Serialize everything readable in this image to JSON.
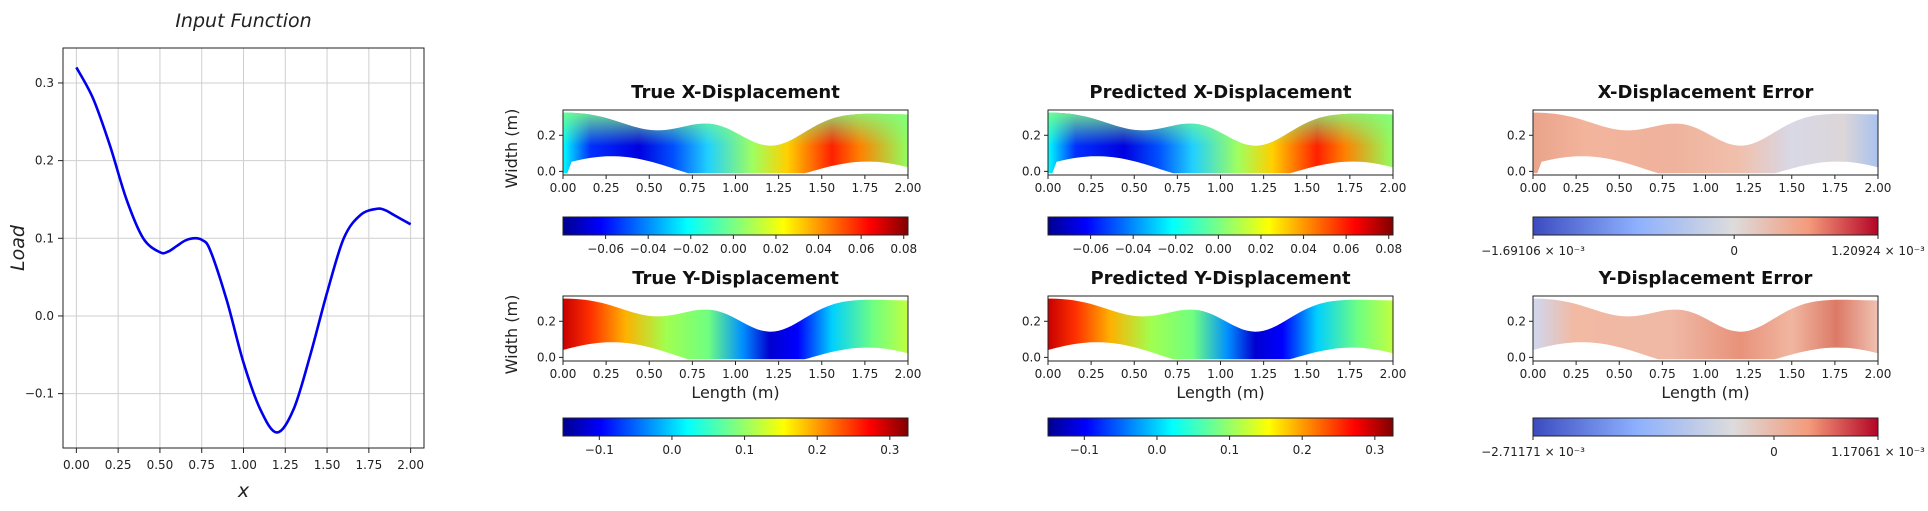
{
  "input_panel": {
    "title": "Input Function",
    "xlabel": "x",
    "ylabel": "Load"
  },
  "panels": {
    "tx": {
      "title": "True X-Displacement"
    },
    "px": {
      "title": "Predicted X-Displacement"
    },
    "ex": {
      "title": "X-Displacement Error"
    },
    "ty": {
      "title": "True Y-Displacement"
    },
    "py": {
      "title": "Predicted Y-Displacement"
    },
    "ey": {
      "title": "Y-Displacement Error"
    }
  },
  "axes_text": {
    "width_label": "Width (m)",
    "length_label": "Length (m)",
    "x_ticks": [
      "0.00",
      "0.25",
      "0.50",
      "0.75",
      "1.00",
      "1.25",
      "1.50",
      "1.75",
      "2.00"
    ],
    "y_ticks": [
      "0.0",
      "0.2"
    ]
  },
  "colorbars": {
    "x_disp_ticks": [
      "−0.06",
      "−0.04",
      "−0.02",
      "0.00",
      "0.02",
      "0.04",
      "0.06",
      "0.08"
    ],
    "y_disp_ticks": [
      "−0.1",
      "0.0",
      "0.1",
      "0.2",
      "0.3"
    ],
    "ex_min": "−1.69106 × 10⁻³",
    "ex_zero": "0",
    "ex_max": "1.20924 × 10⁻³",
    "ey_min": "−2.71171 × 10⁻³",
    "ey_zero": "0",
    "ey_max": "1.17061 × 10⁻³"
  },
  "chart_data": [
    {
      "type": "line",
      "title": "Input Function",
      "xlabel": "x",
      "ylabel": "Load",
      "x": [
        0.0,
        0.1,
        0.2,
        0.3,
        0.4,
        0.5,
        0.55,
        0.6,
        0.65,
        0.7,
        0.75,
        0.8,
        0.9,
        1.0,
        1.1,
        1.2,
        1.3,
        1.4,
        1.5,
        1.6,
        1.7,
        1.8,
        1.85,
        1.9,
        2.0
      ],
      "y": [
        0.32,
        0.28,
        0.22,
        0.15,
        0.1,
        0.082,
        0.083,
        0.09,
        0.097,
        0.1,
        0.098,
        0.085,
        0.02,
        -0.06,
        -0.12,
        -0.15,
        -0.12,
        -0.05,
        0.03,
        0.1,
        0.13,
        0.138,
        0.136,
        0.13,
        0.118
      ],
      "xticks": [
        "0.00",
        "0.25",
        "0.50",
        "0.75",
        "1.00",
        "1.25",
        "1.50",
        "1.75",
        "2.00"
      ],
      "yticks": [
        "−0.1",
        "0.0",
        "0.1",
        "0.2",
        "0.3"
      ],
      "xlim": [
        -0.08,
        2.08
      ],
      "ylim": [
        -0.17,
        0.345
      ],
      "grid": true,
      "color": "#0000ee"
    },
    {
      "type": "heatmap",
      "title": "True X-Displacement",
      "colormap": "jet",
      "colorbar_range": [
        -0.08,
        0.082
      ],
      "ylabel": "Width (m)",
      "xlim": [
        0,
        2
      ],
      "ylim": [
        -0.02,
        0.34
      ]
    },
    {
      "type": "heatmap",
      "title": "Predicted X-Displacement",
      "colormap": "jet",
      "colorbar_range": [
        -0.08,
        0.082
      ],
      "xlim": [
        0,
        2
      ],
      "ylim": [
        -0.02,
        0.34
      ]
    },
    {
      "type": "heatmap",
      "title": "X-Displacement Error",
      "colormap": "coolwarm",
      "colorbar_range": [
        -0.00169106,
        0.00120924
      ],
      "xlim": [
        0,
        2
      ],
      "ylim": [
        -0.02,
        0.34
      ]
    },
    {
      "type": "heatmap",
      "title": "True Y-Displacement",
      "colormap": "jet",
      "colorbar_range": [
        -0.15,
        0.325
      ],
      "xlabel": "Length (m)",
      "ylabel": "Width (m)",
      "xlim": [
        0,
        2
      ],
      "ylim": [
        -0.02,
        0.34
      ]
    },
    {
      "type": "heatmap",
      "title": "Predicted Y-Displacement",
      "colormap": "jet",
      "colorbar_range": [
        -0.15,
        0.325
      ],
      "xlabel": "Length (m)",
      "xlim": [
        0,
        2
      ],
      "ylim": [
        -0.02,
        0.34
      ]
    },
    {
      "type": "heatmap",
      "title": "Y-Displacement Error",
      "colormap": "coolwarm",
      "colorbar_range": [
        -0.00271171,
        0.00117061
      ],
      "xlabel": "Length (m)",
      "xlim": [
        0,
        2
      ],
      "ylim": [
        -0.02,
        0.34
      ]
    }
  ]
}
